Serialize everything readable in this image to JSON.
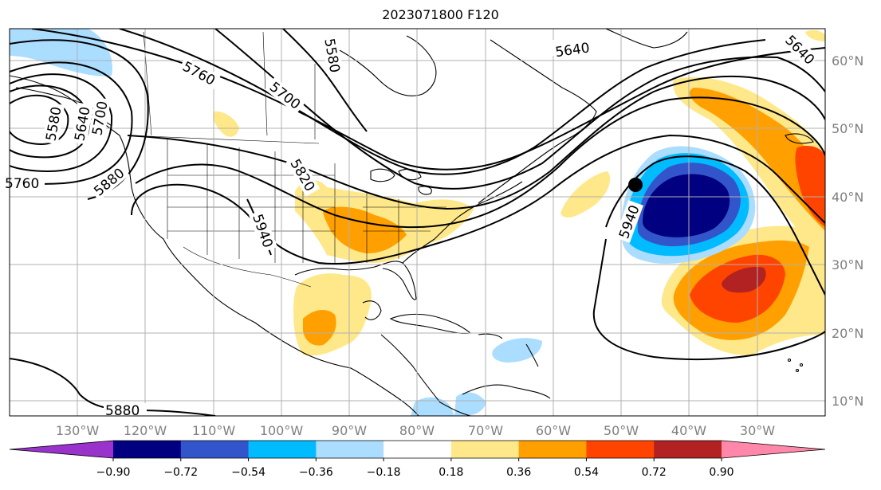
{
  "title": "2023071800 F120",
  "map": {
    "projection": "PlateCarree",
    "lon_range": [
      -142,
      -22
    ],
    "lat_range": [
      7,
      65
    ],
    "lat_ticks": [
      "10°N",
      "20°N",
      "30°N",
      "40°N",
      "50°N",
      "60°N"
    ],
    "lon_ticks": [
      "130°W",
      "120°W",
      "110°W",
      "100°W",
      "90°W",
      "80°W",
      "70°W",
      "60°W",
      "50°W",
      "40°W",
      "30°W"
    ],
    "gridlines": true,
    "contour_labels": [
      "5640",
      "5640",
      "5760",
      "5700",
      "5580",
      "5580",
      "5640",
      "5700",
      "5760",
      "5880",
      "5820",
      "5940",
      "5940",
      "5880"
    ],
    "marker": {
      "lon": -48.6,
      "lat": 42.0
    }
  },
  "colorbar": {
    "ticks": [
      "−0.90",
      "−0.72",
      "−0.54",
      "−0.36",
      "−0.18",
      "0.18",
      "0.36",
      "0.54",
      "0.72",
      "0.90"
    ],
    "colors": [
      "#9933cc",
      "#000080",
      "#3355cc",
      "#00bbff",
      "#aaddff",
      "#ffffff",
      "#ffe88a",
      "#ffa000",
      "#ff4400",
      "#b22222",
      "#ff88aa"
    ],
    "extend": "both"
  }
}
